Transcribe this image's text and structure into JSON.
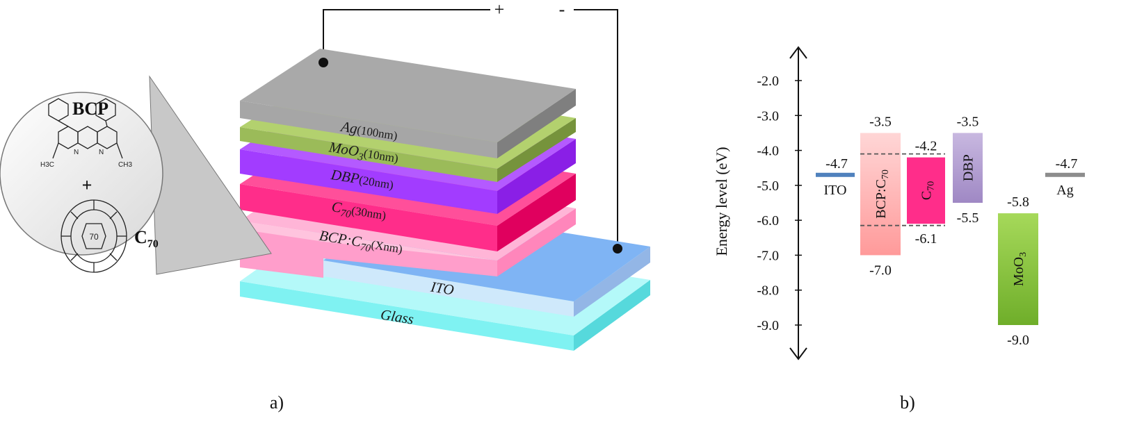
{
  "panel_a": {
    "caption": "a)",
    "terminals": {
      "plus": "+",
      "minus": "-"
    },
    "layers": {
      "ag": {
        "label": "Ag",
        "thickness": "(100nm)",
        "color": "#a6a6a6"
      },
      "moo3": {
        "label": "MoO",
        "sub": "3",
        "thickness": "(10nm)",
        "color": "#9bbb59"
      },
      "dbp": {
        "label": "DBP",
        "thickness": "(20nm)",
        "color": "#9b30ff"
      },
      "c70": {
        "label": "C",
        "sub": "70",
        "thickness": "(30nm)",
        "color": "#ff2d8a"
      },
      "bcp_c70": {
        "label": "BCP:C",
        "sub": "70",
        "thickness": "(Xnm)",
        "color": "#ff9ecb"
      },
      "ito": {
        "label": "ITO",
        "color": "#8fbdf7"
      },
      "glass": {
        "label": "Glass",
        "color": "#8ff4f4"
      }
    },
    "inset": {
      "molecule1": "BCP",
      "plus": "+",
      "molecule2": "C",
      "molecule2_sub": "70",
      "bcp_methyl_left": "H3C",
      "bcp_methyl_right": "CH3",
      "bcp_n": "N",
      "fullerene_center": "70"
    }
  },
  "panel_b": {
    "caption": "b)",
    "ylabel": "Energy level (eV)",
    "ticks": [
      "-2.0",
      "-3.0",
      "-4.0",
      "-5.0",
      "-6.0",
      "-7.0",
      "-8.0",
      "-9.0"
    ]
  },
  "chart_data": {
    "type": "bar",
    "ylabel": "Energy level (eV)",
    "ylim": [
      -9.9,
      -1.0
    ],
    "categories": [
      "ITO",
      "BCP:C70",
      "C70",
      "DBP",
      "MoO3",
      "Ag"
    ],
    "series": [
      {
        "values": [
          {
            "name": "ITO",
            "top": -4.7,
            "bottom": -4.7,
            "color": "#4f81bd",
            "top_label": "-4.7"
          },
          {
            "name": "BCP:C70",
            "top": -3.5,
            "bottom": -7.0,
            "color": "#ffb3b3",
            "top_label": "-3.5",
            "bottom_label": "-7.0"
          },
          {
            "name": "C70",
            "top": -4.2,
            "bottom": -6.1,
            "color": "#ff2d8a",
            "top_label": "-4.2",
            "bottom_label": "-6.1"
          },
          {
            "name": "DBP",
            "top": -3.5,
            "bottom": -5.5,
            "color": "#b4a2cf",
            "top_label": "-3.5",
            "bottom_label": "-5.5"
          },
          {
            "name": "MoO3",
            "top": -5.8,
            "bottom": -9.0,
            "color": "#8cc43f",
            "top_label": "-5.8",
            "bottom_label": "-9.0"
          },
          {
            "name": "Ag",
            "top": -4.7,
            "bottom": -4.7,
            "color": "#8c8c8c",
            "top_label": "-4.7"
          }
        ]
      }
    ],
    "dashed_levels": [
      -4.1,
      -6.15
    ]
  }
}
